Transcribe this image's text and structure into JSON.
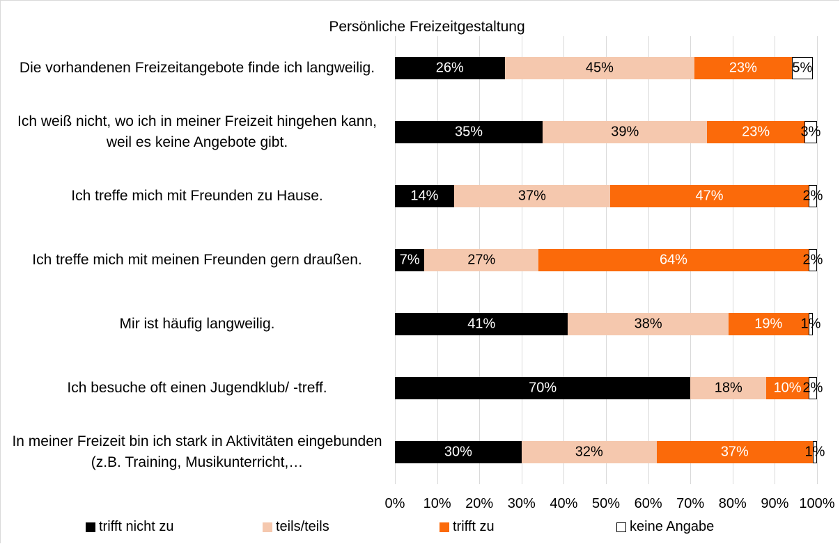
{
  "chart_data": {
    "type": "stacked_barh",
    "title": "Persönliche Freizeitgestaltung",
    "categories": [
      "Die vorhandenen Freizeitangebote finde ich langweilig.",
      "Ich weiß nicht, wo ich in meiner Freizeit hingehen kann, weil es keine Angebote gibt.",
      "Ich treffe mich mit Freunden zu Hause.",
      "Ich treffe mich mit meinen Freunden gern draußen.",
      "Mir ist häufig langweilig.",
      "Ich besuche oft einen Jugendklub/ -treff.",
      "In meiner Freizeit bin ich stark in Aktivitäten eingebunden (z.B. Training, Musikunterricht,…"
    ],
    "series": [
      {
        "name": "trifft nicht zu",
        "color": "#000000",
        "values": [
          26,
          35,
          14,
          7,
          41,
          70,
          30
        ],
        "value_labels": [
          "26%",
          "35%",
          "14%",
          "7%",
          "41%",
          "70%",
          "30%"
        ]
      },
      {
        "name": "teils/teils",
        "color": "#f5c8ae",
        "values": [
          45,
          39,
          37,
          27,
          38,
          18,
          32
        ],
        "value_labels": [
          "45%",
          "39%",
          "37%",
          "27%",
          "38%",
          "18%",
          "32%"
        ]
      },
      {
        "name": "trifft zu",
        "color": "#fb6a0a",
        "values": [
          23,
          23,
          47,
          64,
          19,
          10,
          37
        ],
        "value_labels": [
          "23%",
          "23%",
          "47%",
          "64%",
          "19%",
          "10%",
          "37%"
        ]
      },
      {
        "name": "keine Angabe",
        "color": "#ffffff",
        "values": [
          5,
          3,
          2,
          2,
          1,
          2,
          1
        ],
        "value_labels": [
          "5%",
          "3%",
          "2%",
          "2%",
          "1%",
          "2%",
          "1%"
        ]
      }
    ],
    "xlim": [
      0,
      100
    ],
    "xticks": [
      {
        "value": 0,
        "label": "0%"
      },
      {
        "value": 10,
        "label": "10%"
      },
      {
        "value": 20,
        "label": "20%"
      },
      {
        "value": 30,
        "label": "30%"
      },
      {
        "value": 40,
        "label": "40%"
      },
      {
        "value": 50,
        "label": "50%"
      },
      {
        "value": 60,
        "label": "60%"
      },
      {
        "value": 70,
        "label": "70%"
      },
      {
        "value": 80,
        "label": "80%"
      },
      {
        "value": 90,
        "label": "90%"
      },
      {
        "value": 100,
        "label": "100%"
      }
    ],
    "grid": true,
    "legend": "bottom"
  }
}
